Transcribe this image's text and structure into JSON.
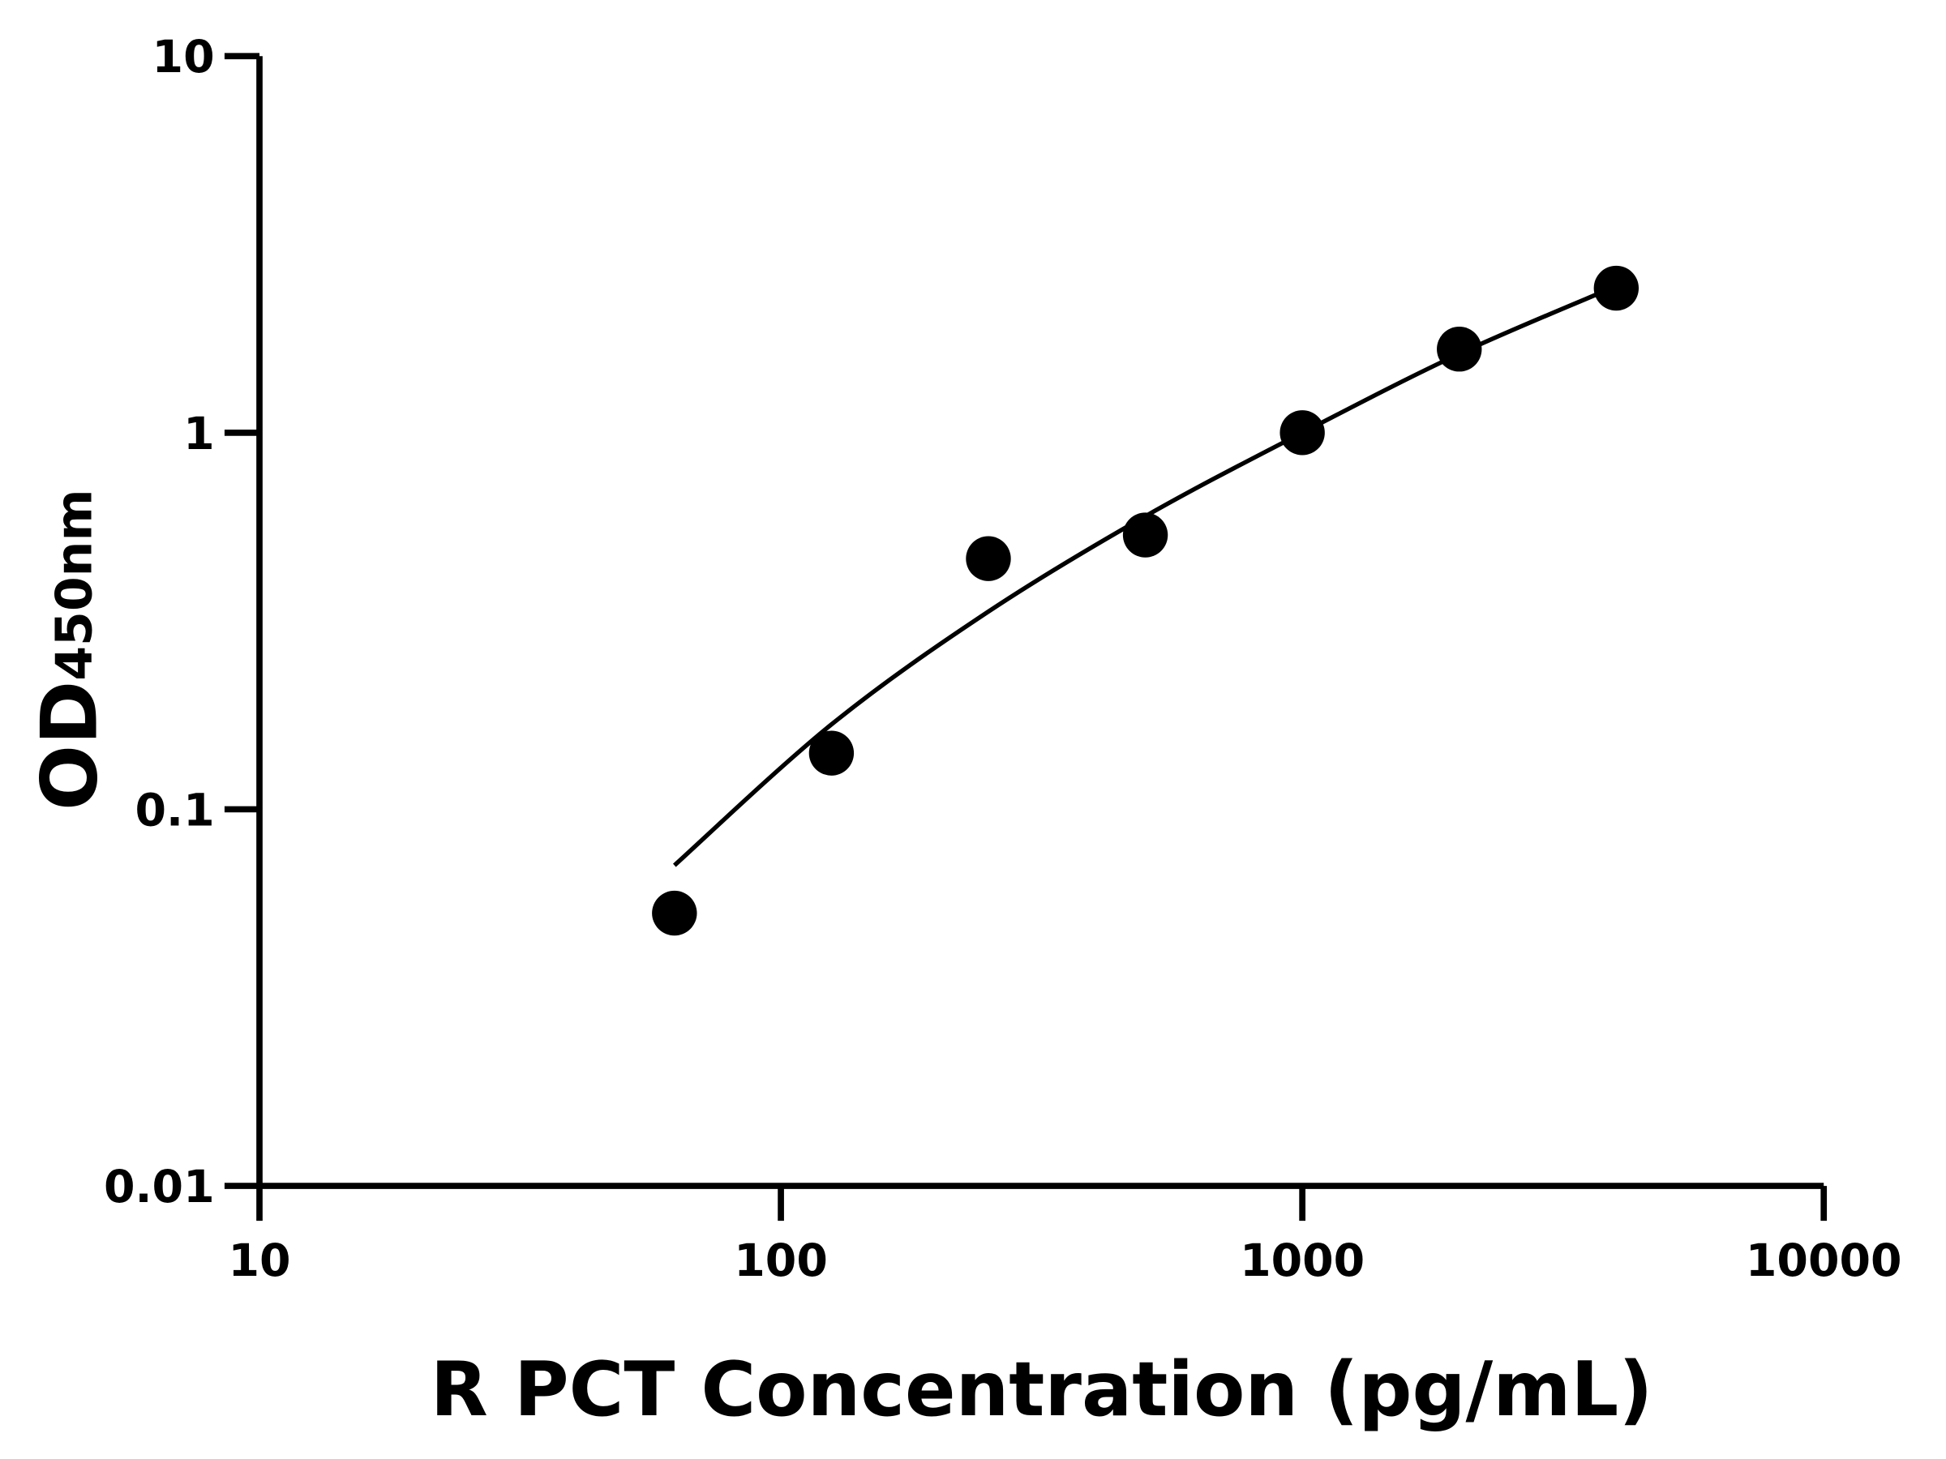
{
  "chart_data": {
    "type": "scatter",
    "title": "",
    "xlabel": "R PCT Concentration (pg/mL)",
    "ylabel": "OD",
    "ylabel_subscript": "450nm",
    "x_scale": "log",
    "y_scale": "log",
    "xlim": [
      10,
      10000
    ],
    "ylim": [
      0.01,
      10
    ],
    "x_ticks": [
      10,
      100,
      1000,
      10000
    ],
    "x_tick_labels": [
      "10",
      "100",
      "1000",
      "10000"
    ],
    "y_ticks": [
      0.01,
      0.1,
      1,
      10
    ],
    "y_tick_labels": [
      "0.01",
      "0.1",
      "1",
      "10"
    ],
    "grid": false,
    "legend": "none",
    "color": "#000000",
    "points": {
      "x": [
        62.5,
        125,
        250,
        500,
        1000,
        2000,
        4000
      ],
      "y": [
        0.053,
        0.141,
        0.463,
        0.535,
        1.0,
        1.667,
        2.42
      ]
    },
    "fit_curve": {
      "x": [
        62.5,
        125,
        250,
        500,
        1000,
        2000,
        4000
      ],
      "y": [
        0.071,
        0.168,
        0.335,
        0.6,
        1.0,
        1.62,
        2.45
      ]
    }
  }
}
